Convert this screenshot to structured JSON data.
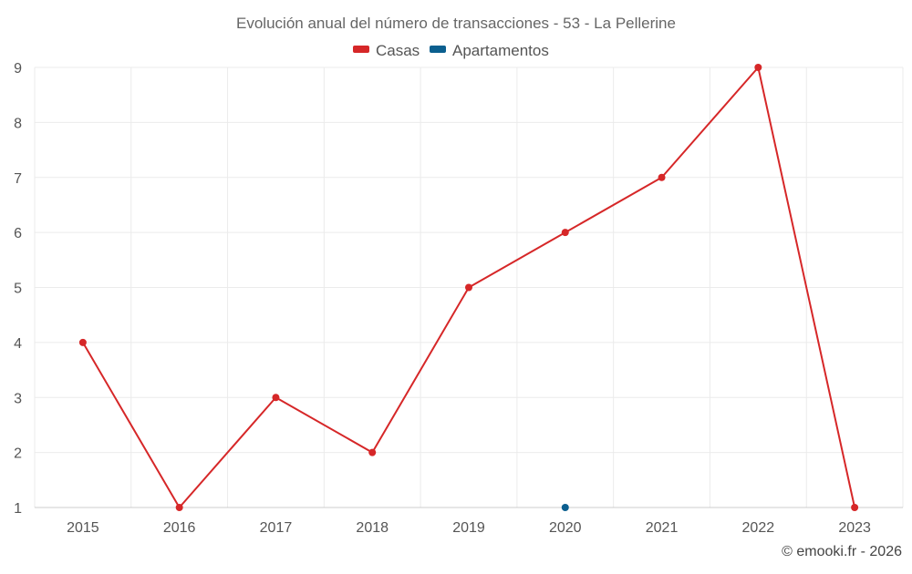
{
  "chart_data": {
    "type": "line",
    "title": "Evolución anual del número de transacciones - 53 - La Pellerine",
    "categories": [
      "2015",
      "2016",
      "2017",
      "2018",
      "2019",
      "2020",
      "2021",
      "2022",
      "2023"
    ],
    "yticks": [
      "1",
      "2",
      "3",
      "4",
      "5",
      "6",
      "7",
      "8",
      "9"
    ],
    "ylim": [
      1,
      9
    ],
    "grid": true,
    "legend_position": "top-center",
    "series": [
      {
        "name": "Casas",
        "color": "#d62728",
        "values": [
          4,
          1,
          3,
          2,
          5,
          6,
          7,
          9,
          1
        ]
      },
      {
        "name": "Apartamentos",
        "color": "#0b5f8f",
        "values": [
          null,
          null,
          null,
          null,
          null,
          1,
          null,
          null,
          null
        ]
      }
    ],
    "xlabel": "",
    "ylabel": ""
  },
  "credit": "© emooki.fr - 2026"
}
